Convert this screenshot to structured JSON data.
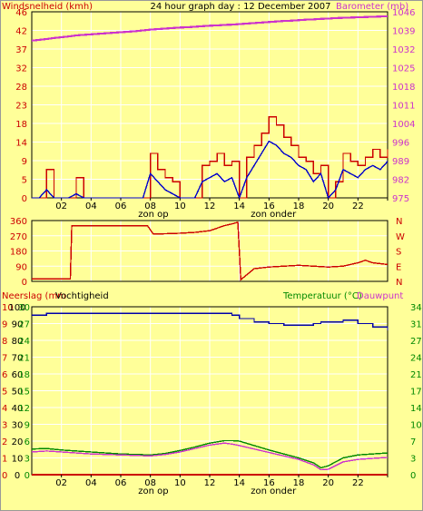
{
  "header": {
    "title": "24 hour graph day : 12 December 2007",
    "left_label": "Windsnelheid (kmh)",
    "right_label": "Barometer (mb)"
  },
  "colors": {
    "background": "#ffff99",
    "plot": "#ffff99",
    "grid": "#ffffff",
    "axis": "#000000",
    "wind_gust": "#cc0000",
    "wind_avg": "#0000cc",
    "barometer": "#cc33cc",
    "direction": "#cc0000",
    "humidity": "#0000aa",
    "temperature": "#008800",
    "dewpoint": "#cc33cc",
    "rain": "#cc0000",
    "left_text": "#cc0000",
    "green_text": "#008800"
  },
  "x_axis": {
    "ticks": [
      "02",
      "04",
      "06",
      "08",
      "10",
      "12",
      "14",
      "16",
      "18",
      "20",
      "22",
      ""
    ],
    "sunrise_label": "zon op",
    "sunset_label": "zon onder"
  },
  "chart_data": [
    {
      "type": "line",
      "title": "24 hour graph day : 12 December 2007",
      "ylabel_left": "Windsnelheid (kmh)",
      "ylabel_right": "Barometer (mb)",
      "left_ticks": [
        "46",
        "42",
        "37",
        "32",
        "28",
        "23",
        "18",
        "14",
        "9",
        "5",
        "0"
      ],
      "right_ticks": [
        "1046",
        "1039",
        "1032",
        "1025",
        "1018",
        "1011",
        "1004",
        "996",
        "989",
        "982",
        "975"
      ],
      "ylim_left": [
        0,
        46
      ],
      "ylim_right": [
        975,
        1046
      ],
      "x_hours": [
        0,
        0.5,
        1,
        1.5,
        2,
        2.5,
        3,
        3.5,
        4,
        4.5,
        5,
        5.5,
        6,
        6.5,
        7,
        7.5,
        8,
        8.5,
        9,
        9.5,
        10,
        10.5,
        11,
        11.5,
        12,
        12.5,
        13,
        13.5,
        14,
        14.5,
        15,
        15.5,
        16,
        16.5,
        17,
        17.5,
        18,
        18.5,
        19,
        19.5,
        20,
        20.5,
        21,
        21.5,
        22,
        22.5,
        23,
        23.5,
        24
      ],
      "series": [
        {
          "name": "Barometer",
          "axis": "right",
          "values": [
            1035,
            1035.3,
            1035.6,
            1036,
            1036.3,
            1036.6,
            1037,
            1037.2,
            1037.4,
            1037.6,
            1037.8,
            1038,
            1038.2,
            1038.4,
            1038.6,
            1038.9,
            1039.2,
            1039.4,
            1039.6,
            1039.8,
            1040,
            1040.1,
            1040.3,
            1040.5,
            1040.7,
            1040.8,
            1041,
            1041.1,
            1041.3,
            1041.5,
            1041.7,
            1041.9,
            1042.1,
            1042.3,
            1042.5,
            1042.6,
            1042.8,
            1043,
            1043.1,
            1043.3,
            1043.4,
            1043.6,
            1043.7,
            1043.8,
            1043.9,
            1044,
            1044.1,
            1044.2,
            1044.3
          ]
        },
        {
          "name": "Gust",
          "axis": "left",
          "values": [
            0,
            0,
            7,
            0,
            0,
            0,
            5,
            0,
            0,
            0,
            0,
            0,
            0,
            0,
            0,
            0,
            11,
            7,
            5,
            4,
            0,
            0,
            0,
            8,
            9,
            11,
            8,
            9,
            0,
            10,
            13,
            16,
            20,
            18,
            15,
            13,
            10,
            9,
            6,
            8,
            0,
            4,
            11,
            9,
            8,
            10,
            12,
            10,
            12
          ]
        },
        {
          "name": "Average",
          "axis": "left",
          "values": [
            0,
            0,
            2,
            0,
            0,
            0,
            1,
            0,
            0,
            0,
            0,
            0,
            0,
            0,
            0,
            0,
            6,
            4,
            2,
            1,
            0,
            0,
            0,
            4,
            5,
            6,
            4,
            5,
            0,
            5,
            8,
            11,
            14,
            13,
            11,
            10,
            8,
            7,
            4,
            6,
            0,
            2,
            7,
            6,
            5,
            7,
            8,
            7,
            9
          ]
        }
      ]
    },
    {
      "type": "line",
      "ylabel_left_ticks": [
        "360",
        "270",
        "180",
        "90",
        "0"
      ],
      "ylabel_right_ticks": [
        "N",
        "W",
        "S",
        "E",
        "N"
      ],
      "ylim": [
        0,
        360
      ],
      "x_hours": [
        0,
        1,
        2,
        2.6,
        2.7,
        4,
        6,
        7.8,
        8.2,
        9,
        10,
        11,
        12,
        13,
        13.5,
        13.9,
        14.1,
        15,
        16,
        17,
        18,
        19,
        20,
        21,
        22,
        22.5,
        23,
        24
      ],
      "series": [
        {
          "name": "Windrichting",
          "values": [
            15,
            15,
            15,
            15,
            330,
            330,
            330,
            330,
            280,
            282,
            285,
            290,
            300,
            330,
            340,
            350,
            10,
            75,
            85,
            90,
            95,
            90,
            85,
            90,
            110,
            125,
            110,
            100
          ]
        }
      ]
    },
    {
      "type": "line",
      "ylabel_left": "Neerslag (mm",
      "ylabel_left2": "Vochtigheid",
      "ylabel_right": "Temperatuur (°C)",
      "ylabel_right2": "Dauwpunt",
      "rain_ticks": [
        "10",
        "9",
        "8",
        "7",
        "6",
        "5",
        "4",
        "3",
        "2",
        "1",
        "0"
      ],
      "humidity_ticks": [
        "100",
        "90",
        "80",
        "70",
        "60",
        "50",
        "40",
        "30",
        "20",
        "10",
        "0"
      ],
      "temp_ticks_left": [
        "30",
        "27",
        "24",
        "21",
        "18",
        "15",
        "12",
        "9",
        "6",
        "3",
        "0"
      ],
      "temp_ticks_right": [
        "34",
        "31",
        "27",
        "24",
        "21",
        "17",
        "14",
        "10",
        "7",
        "3",
        "0"
      ],
      "ylim_humidity": [
        0,
        100
      ],
      "ylim_temp": [
        0,
        34
      ],
      "x_hours": [
        0,
        1,
        2,
        3,
        4,
        5,
        6,
        7,
        8,
        9,
        10,
        11,
        12,
        13,
        13.5,
        14,
        15,
        16,
        17,
        18,
        19,
        19.5,
        20,
        21,
        22,
        23,
        24
      ],
      "series": [
        {
          "name": "Vochtigheid",
          "values": [
            95,
            96,
            96,
            96,
            96,
            96,
            96,
            96,
            96,
            96,
            96,
            96,
            96,
            96,
            95,
            93,
            91,
            90,
            89,
            89,
            90,
            91,
            91,
            92,
            90,
            88,
            86
          ]
        },
        {
          "name": "Temperatuur",
          "values": [
            5.2,
            5.3,
            5,
            4.8,
            4.6,
            4.4,
            4.2,
            4.1,
            4,
            4.3,
            4.9,
            5.6,
            6.4,
            6.9,
            6.9,
            6.8,
            5.9,
            5,
            4.2,
            3.4,
            2.4,
            1.4,
            1.8,
            3.4,
            4,
            4.2,
            4.4
          ]
        },
        {
          "name": "Dauwpunt",
          "values": [
            4.6,
            4.8,
            4.6,
            4.4,
            4.2,
            4.1,
            4,
            3.9,
            3.8,
            4.1,
            4.6,
            5.3,
            6,
            6.4,
            6.2,
            5.9,
            5.2,
            4.5,
            3.8,
            3.1,
            2,
            1,
            1.1,
            2.6,
            3.1,
            3.3,
            3.5
          ]
        },
        {
          "name": "Neerslag",
          "values": [
            0,
            0,
            0,
            0,
            0,
            0,
            0,
            0,
            0,
            0,
            0,
            0,
            0,
            0,
            0,
            0,
            0,
            0,
            0,
            0,
            0,
            0,
            0,
            0,
            0,
            0,
            0
          ]
        }
      ]
    }
  ]
}
